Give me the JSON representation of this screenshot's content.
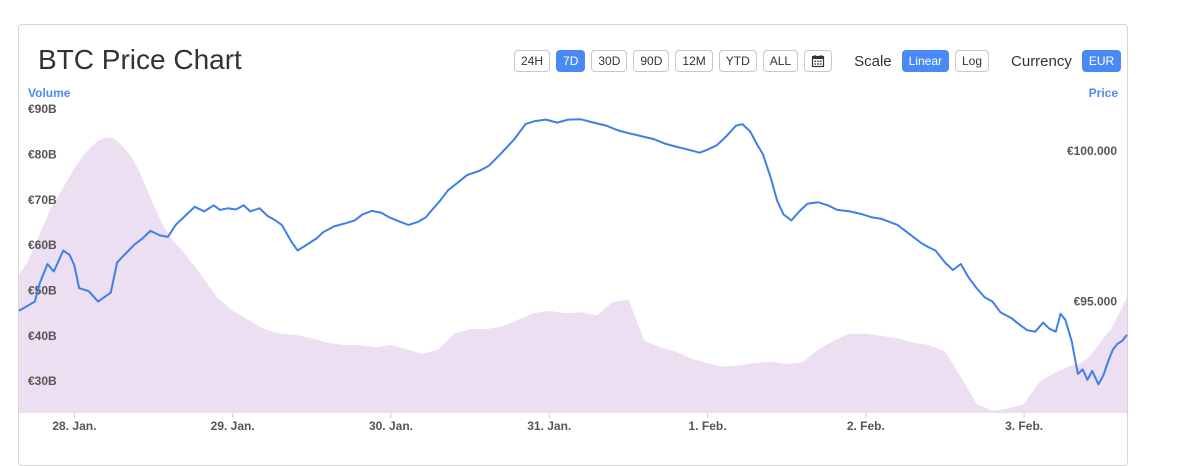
{
  "header": {
    "title": "BTC Price Chart",
    "ranges": [
      "24H",
      "7D",
      "30D",
      "90D",
      "12M",
      "YTD",
      "ALL"
    ],
    "active_range": "7D",
    "calendar_icon": "calendar-icon",
    "scale_label": "Scale",
    "scale_options": [
      "Linear",
      "Log"
    ],
    "active_scale": "Linear",
    "currency_label": "Currency",
    "currency": "EUR"
  },
  "colors": {
    "price_line": "#3f7fe8",
    "volume_fill": "#ecdff2",
    "accent": "#4a8af4"
  },
  "chart_data": {
    "type": "line",
    "title": "BTC Price Chart",
    "left_axis_label": "Volume",
    "right_axis_label": "Price",
    "x_ticks": [
      "28. Jan.",
      "29. Jan.",
      "30. Jan.",
      "31. Jan.",
      "1. Feb.",
      "2. Feb.",
      "3. Feb."
    ],
    "volume_ticks": [
      "€30B",
      "€40B",
      "€50B",
      "€60B",
      "€70B",
      "€80B",
      "€90B"
    ],
    "price_ticks": [
      "€95.000",
      "€100.000"
    ],
    "volume_ylim_billion_eur": [
      23,
      92
    ],
    "price_ylim_eur": [
      91300,
      101700
    ],
    "x_range_days_from_jan28": [
      -0.35,
      6.65
    ],
    "series": [
      {
        "name": "Price",
        "kind": "line",
        "unit": "EUR",
        "points": [
          [
            -0.35,
            94700
          ],
          [
            -0.25,
            95000
          ],
          [
            -0.22,
            95600
          ],
          [
            -0.17,
            96250
          ],
          [
            -0.13,
            96000
          ],
          [
            -0.07,
            96700
          ],
          [
            -0.03,
            96550
          ],
          [
            0.0,
            96200
          ],
          [
            0.03,
            95450
          ],
          [
            0.09,
            95350
          ],
          [
            0.15,
            95000
          ],
          [
            0.23,
            95300
          ],
          [
            0.27,
            96300
          ],
          [
            0.32,
            96580
          ],
          [
            0.38,
            96900
          ],
          [
            0.43,
            97100
          ],
          [
            0.48,
            97350
          ],
          [
            0.54,
            97200
          ],
          [
            0.59,
            97150
          ],
          [
            0.64,
            97550
          ],
          [
            0.71,
            97900
          ],
          [
            0.76,
            98150
          ],
          [
            0.82,
            98000
          ],
          [
            0.88,
            98200
          ],
          [
            0.92,
            98050
          ],
          [
            0.97,
            98100
          ],
          [
            1.02,
            98060
          ],
          [
            1.07,
            98200
          ],
          [
            1.11,
            98000
          ],
          [
            1.17,
            98100
          ],
          [
            1.22,
            97850
          ],
          [
            1.27,
            97700
          ],
          [
            1.31,
            97550
          ],
          [
            1.37,
            97000
          ],
          [
            1.41,
            96700
          ],
          [
            1.47,
            96900
          ],
          [
            1.53,
            97100
          ],
          [
            1.57,
            97300
          ],
          [
            1.64,
            97500
          ],
          [
            1.71,
            97600
          ],
          [
            1.77,
            97700
          ],
          [
            1.82,
            97900
          ],
          [
            1.88,
            98020
          ],
          [
            1.94,
            97950
          ],
          [
            1.99,
            97800
          ],
          [
            2.06,
            97650
          ],
          [
            2.11,
            97550
          ],
          [
            2.17,
            97650
          ],
          [
            2.22,
            97800
          ],
          [
            2.26,
            98050
          ],
          [
            2.31,
            98350
          ],
          [
            2.36,
            98700
          ],
          [
            2.42,
            98950
          ],
          [
            2.48,
            99200
          ],
          [
            2.56,
            99350
          ],
          [
            2.62,
            99520
          ],
          [
            2.7,
            99950
          ],
          [
            2.78,
            100400
          ],
          [
            2.85,
            100900
          ],
          [
            2.91,
            101000
          ],
          [
            2.98,
            101050
          ],
          [
            3.05,
            100950
          ],
          [
            3.12,
            101050
          ],
          [
            3.2,
            101060
          ],
          [
            3.28,
            100950
          ],
          [
            3.36,
            100850
          ],
          [
            3.43,
            100700
          ],
          [
            3.5,
            100600
          ],
          [
            3.58,
            100500
          ],
          [
            3.66,
            100400
          ],
          [
            3.73,
            100250
          ],
          [
            3.8,
            100150
          ],
          [
            3.88,
            100050
          ],
          [
            3.95,
            99950
          ],
          [
            4.0,
            100050
          ],
          [
            4.06,
            100200
          ],
          [
            4.12,
            100500
          ],
          [
            4.18,
            100850
          ],
          [
            4.22,
            100900
          ],
          [
            4.27,
            100650
          ],
          [
            4.31,
            100250
          ],
          [
            4.35,
            99900
          ],
          [
            4.4,
            99100
          ],
          [
            4.44,
            98350
          ],
          [
            4.48,
            97900
          ],
          [
            4.53,
            97700
          ],
          [
            4.58,
            98000
          ],
          [
            4.63,
            98250
          ],
          [
            4.7,
            98300
          ],
          [
            4.76,
            98200
          ],
          [
            4.82,
            98050
          ],
          [
            4.9,
            98000
          ],
          [
            4.98,
            97900
          ],
          [
            5.04,
            97800
          ],
          [
            5.1,
            97750
          ],
          [
            5.15,
            97650
          ],
          [
            5.2,
            97550
          ],
          [
            5.25,
            97350
          ],
          [
            5.3,
            97150
          ],
          [
            5.35,
            96950
          ],
          [
            5.4,
            96800
          ],
          [
            5.44,
            96700
          ],
          [
            5.5,
            96300
          ],
          [
            5.55,
            96050
          ],
          [
            5.6,
            96250
          ],
          [
            5.65,
            95800
          ],
          [
            5.7,
            95450
          ],
          [
            5.75,
            95150
          ],
          [
            5.8,
            95000
          ],
          [
            5.85,
            94650
          ],
          [
            5.92,
            94450
          ],
          [
            5.98,
            94200
          ],
          [
            6.02,
            94050
          ],
          [
            6.07,
            94000
          ],
          [
            6.12,
            94300
          ],
          [
            6.16,
            94100
          ],
          [
            6.2,
            94000
          ],
          [
            6.23,
            94600
          ],
          [
            6.26,
            94400
          ],
          [
            6.3,
            93700
          ],
          [
            6.34,
            92600
          ],
          [
            6.37,
            92750
          ],
          [
            6.4,
            92400
          ],
          [
            6.43,
            92700
          ],
          [
            6.47,
            92250
          ],
          [
            6.5,
            92550
          ],
          [
            6.53,
            93000
          ],
          [
            6.56,
            93400
          ],
          [
            6.59,
            93600
          ],
          [
            6.62,
            93700
          ],
          [
            6.65,
            93900
          ]
        ]
      },
      {
        "name": "Volume",
        "kind": "area",
        "unit": "billion EUR",
        "points": [
          [
            -0.35,
            53.5
          ],
          [
            -0.3,
            56
          ],
          [
            -0.25,
            60
          ],
          [
            -0.2,
            64
          ],
          [
            -0.15,
            68
          ],
          [
            -0.1,
            71
          ],
          [
            -0.05,
            74
          ],
          [
            0.0,
            77
          ],
          [
            0.05,
            79.5
          ],
          [
            0.1,
            81.5
          ],
          [
            0.15,
            83
          ],
          [
            0.2,
            83.8
          ],
          [
            0.25,
            83.5
          ],
          [
            0.3,
            82
          ],
          [
            0.35,
            80
          ],
          [
            0.4,
            77
          ],
          [
            0.45,
            73
          ],
          [
            0.5,
            69
          ],
          [
            0.55,
            65
          ],
          [
            0.6,
            62
          ],
          [
            0.7,
            58
          ],
          [
            0.8,
            53.5
          ],
          [
            0.9,
            48.5
          ],
          [
            1.0,
            45.5
          ],
          [
            1.1,
            43.5
          ],
          [
            1.2,
            41.5
          ],
          [
            1.3,
            40.5
          ],
          [
            1.4,
            40.2
          ],
          [
            1.5,
            39.5
          ],
          [
            1.6,
            38.5
          ],
          [
            1.7,
            38
          ],
          [
            1.8,
            38
          ],
          [
            1.9,
            37.5
          ],
          [
            2.0,
            38
          ],
          [
            2.1,
            37
          ],
          [
            2.2,
            36
          ],
          [
            2.3,
            37
          ],
          [
            2.4,
            40.5
          ],
          [
            2.5,
            41.5
          ],
          [
            2.6,
            41.5
          ],
          [
            2.7,
            42
          ],
          [
            2.8,
            43.5
          ],
          [
            2.9,
            45
          ],
          [
            3.0,
            45.5
          ],
          [
            3.1,
            45
          ],
          [
            3.2,
            45.2
          ],
          [
            3.3,
            44.5
          ],
          [
            3.4,
            47.5
          ],
          [
            3.5,
            48
          ],
          [
            3.6,
            39
          ],
          [
            3.7,
            37.5
          ],
          [
            3.8,
            36.5
          ],
          [
            3.9,
            35
          ],
          [
            4.0,
            34
          ],
          [
            4.1,
            33.2
          ],
          [
            4.2,
            33.5
          ],
          [
            4.3,
            34
          ],
          [
            4.4,
            34.3
          ],
          [
            4.5,
            33.8
          ],
          [
            4.6,
            34.2
          ],
          [
            4.7,
            37
          ],
          [
            4.8,
            39
          ],
          [
            4.9,
            40.5
          ],
          [
            5.0,
            40.5
          ],
          [
            5.1,
            40
          ],
          [
            5.2,
            39.5
          ],
          [
            5.3,
            38.5
          ],
          [
            5.4,
            38
          ],
          [
            5.5,
            36.5
          ],
          [
            5.6,
            31
          ],
          [
            5.7,
            25
          ],
          [
            5.8,
            23.5
          ],
          [
            5.9,
            24
          ],
          [
            6.0,
            25
          ],
          [
            6.1,
            30
          ],
          [
            6.2,
            32
          ],
          [
            6.3,
            33.5
          ],
          [
            6.35,
            33.8
          ],
          [
            6.4,
            35
          ],
          [
            6.45,
            37
          ],
          [
            6.5,
            39.5
          ],
          [
            6.55,
            41.5
          ],
          [
            6.6,
            45
          ],
          [
            6.65,
            48.5
          ]
        ]
      }
    ],
    "grid": false,
    "legend": "none"
  }
}
